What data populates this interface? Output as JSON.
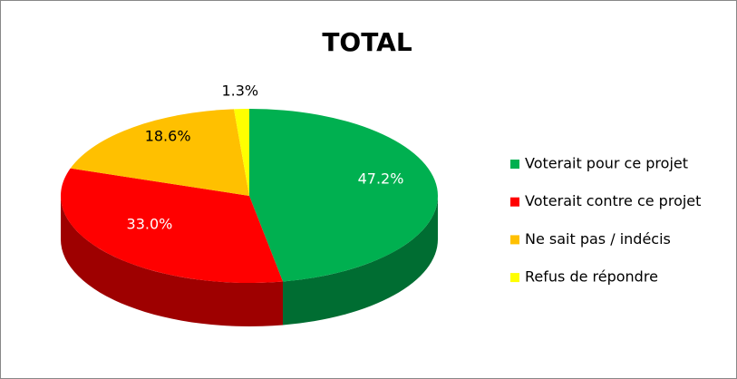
{
  "chart_data": {
    "type": "pie",
    "title": "TOTAL",
    "categories": [
      "Voterait pour ce projet",
      "Voterait contre ce projet",
      "Ne sait pas / indécis",
      "Refus de répondre"
    ],
    "values": [
      47.2,
      33.0,
      18.6,
      1.3
    ],
    "value_labels": [
      "47.2%",
      "33.0%",
      "18.6%",
      "1.3%"
    ],
    "colors": [
      "#00b050",
      "#ff0000",
      "#ffc000",
      "#ffff00"
    ],
    "legend": "right"
  }
}
